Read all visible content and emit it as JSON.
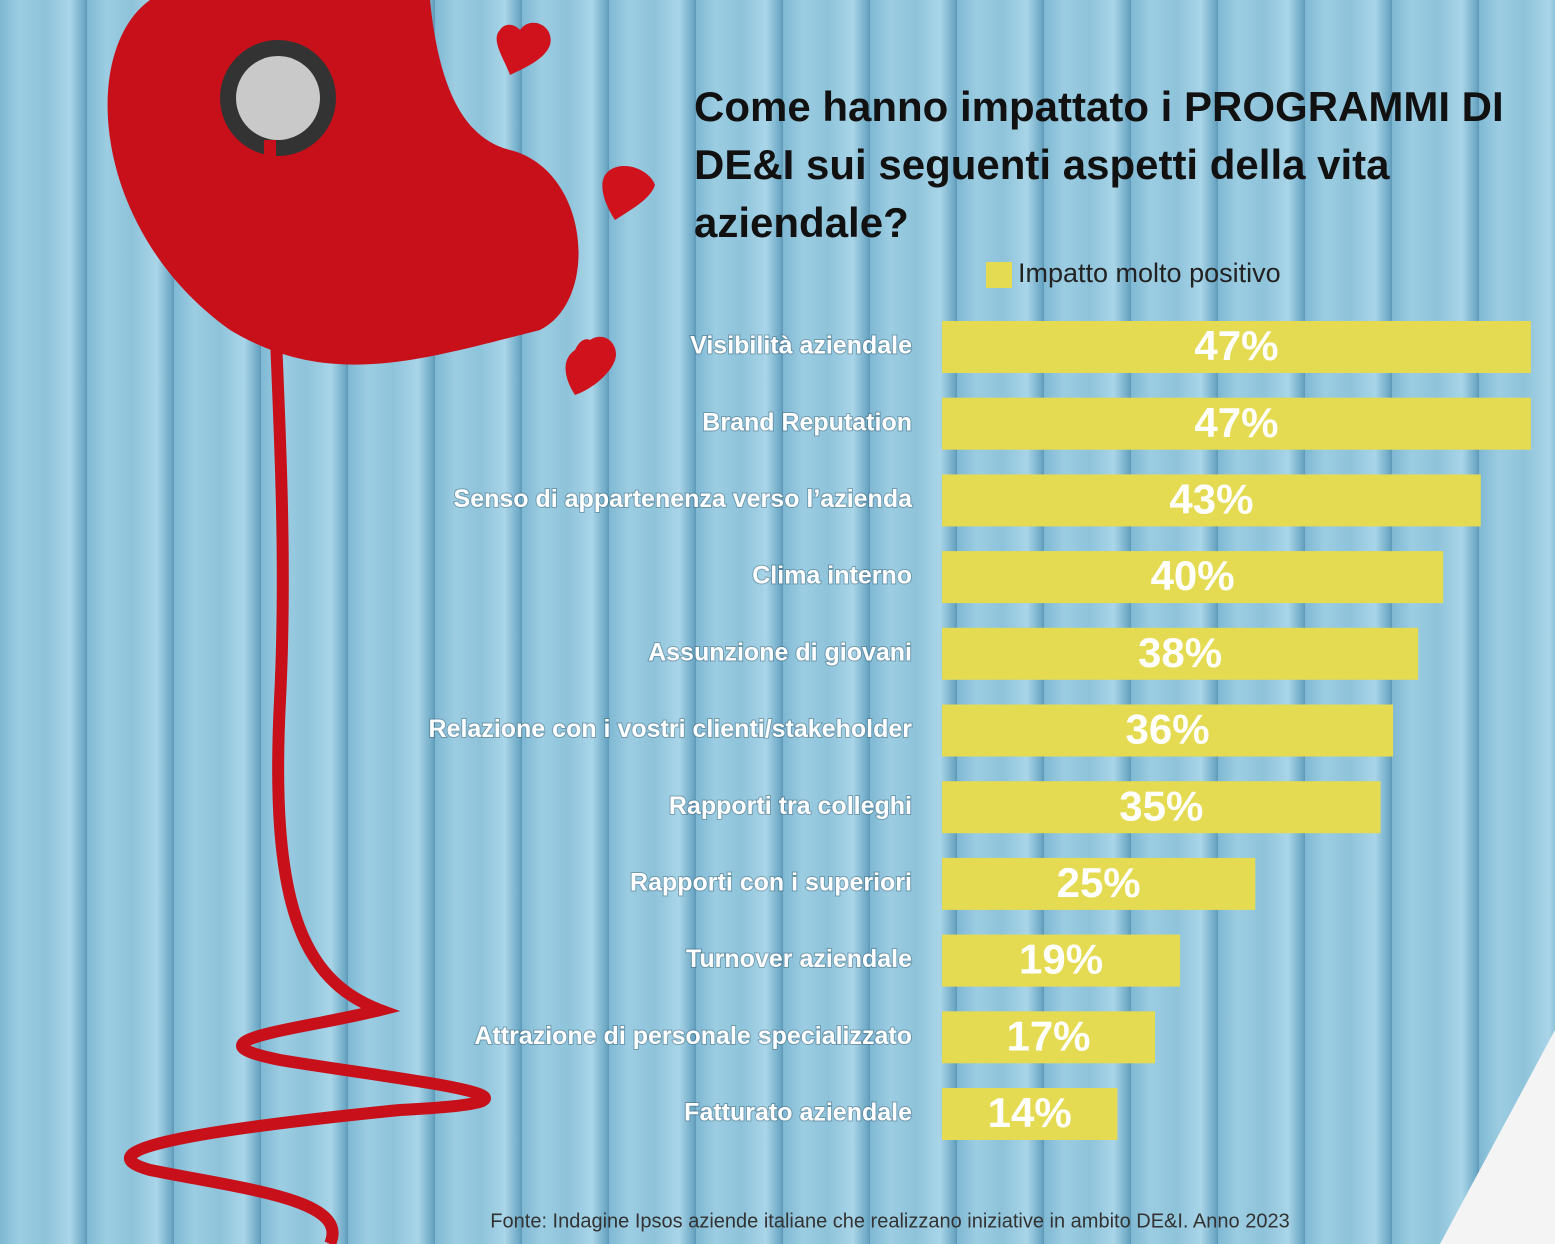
{
  "chart_data": {
    "type": "bar",
    "orientation": "horizontal",
    "title": "Come hanno impattato i PROGRAMMI DI DE&I sui seguenti aspetti della vita aziendale?",
    "categories": [
      "Visibilità aziendale",
      "Brand Reputation",
      "Senso di appartenenza verso l’azienda",
      "Clima interno",
      "Assunzione di giovani",
      "Relazione con i vostri clienti/stakeholder",
      "Rapporti tra colleghi",
      "Rapporti con i superiori",
      "Turnover aziendale",
      "Attrazione di personale specializzato",
      "Fatturato aziendale"
    ],
    "series": [
      {
        "name": "Impatto molto positivo",
        "color": "#e4db52",
        "values": [
          47,
          47,
          43,
          40,
          38,
          36,
          35,
          25,
          19,
          17,
          14
        ],
        "value_labels": [
          "47%",
          "47%",
          "43%",
          "40%",
          "38%",
          "36%",
          "35%",
          "25%",
          "19%",
          "17%",
          "14%"
        ]
      }
    ],
    "source": "Fonte: Indagine Ipsos aziende italiane che realizzano iniziative in ambito  DE&I. Anno 2023"
  }
}
